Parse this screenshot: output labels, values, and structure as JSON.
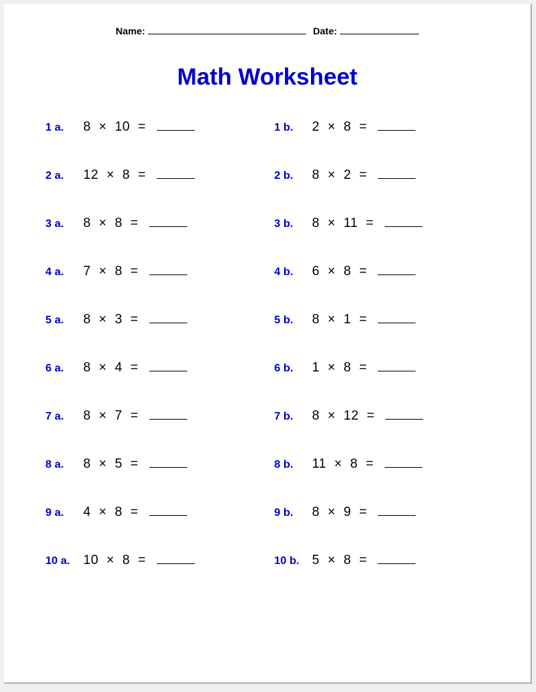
{
  "header": {
    "name_label": "Name:",
    "date_label": "Date:"
  },
  "title": "Math Worksheet",
  "colors": {
    "accent": "#0000cc",
    "text": "#000000",
    "page_bg": "#ffffff"
  },
  "typography": {
    "title_fontsize": 34,
    "label_fontsize": 16,
    "expr_fontsize": 19,
    "header_fontsize": 14
  },
  "layout": {
    "columns": 2,
    "rows": 10
  },
  "operator": "×",
  "equals": "=",
  "problems": [
    {
      "label": "1 a.",
      "a": 8,
      "b": 10
    },
    {
      "label": "1 b.",
      "a": 2,
      "b": 8
    },
    {
      "label": "2 a.",
      "a": 12,
      "b": 8
    },
    {
      "label": "2 b.",
      "a": 8,
      "b": 2
    },
    {
      "label": "3 a.",
      "a": 8,
      "b": 8
    },
    {
      "label": "3 b.",
      "a": 8,
      "b": 11
    },
    {
      "label": "4 a.",
      "a": 7,
      "b": 8
    },
    {
      "label": "4 b.",
      "a": 6,
      "b": 8
    },
    {
      "label": "5 a.",
      "a": 8,
      "b": 3
    },
    {
      "label": "5 b.",
      "a": 8,
      "b": 1
    },
    {
      "label": "6 a.",
      "a": 8,
      "b": 4
    },
    {
      "label": "6 b.",
      "a": 1,
      "b": 8
    },
    {
      "label": "7 a.",
      "a": 8,
      "b": 7
    },
    {
      "label": "7 b.",
      "a": 8,
      "b": 12
    },
    {
      "label": "8 a.",
      "a": 8,
      "b": 5
    },
    {
      "label": "8 b.",
      "a": 11,
      "b": 8
    },
    {
      "label": "9 a.",
      "a": 4,
      "b": 8
    },
    {
      "label": "9 b.",
      "a": 8,
      "b": 9
    },
    {
      "label": "10 a.",
      "a": 10,
      "b": 8
    },
    {
      "label": "10 b.",
      "a": 5,
      "b": 8
    }
  ]
}
